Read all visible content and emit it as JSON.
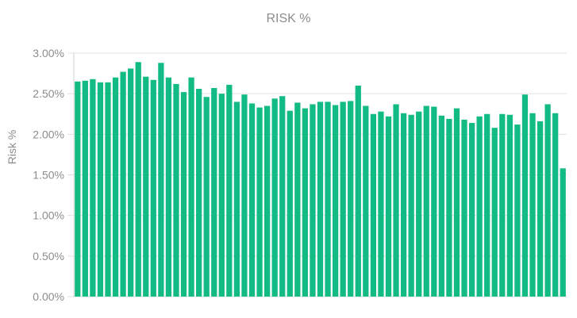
{
  "chart_data": {
    "type": "bar",
    "title": "RISK %",
    "xlabel": "",
    "ylabel": "Risk %",
    "ylim": [
      0,
      3.0
    ],
    "y_ticks": [
      "0.00%",
      "0.50%",
      "1.00%",
      "1.50%",
      "2.00%",
      "2.50%",
      "3.00%"
    ],
    "grid": true,
    "legend": "none",
    "bar_color": "#13bb84",
    "values": [
      2.65,
      2.66,
      2.68,
      2.64,
      2.64,
      2.7,
      2.77,
      2.81,
      2.89,
      2.71,
      2.67,
      2.88,
      2.7,
      2.62,
      2.52,
      2.7,
      2.56,
      2.46,
      2.57,
      2.5,
      2.61,
      2.4,
      2.49,
      2.38,
      2.33,
      2.35,
      2.44,
      2.47,
      2.29,
      2.39,
      2.32,
      2.37,
      2.4,
      2.4,
      2.36,
      2.4,
      2.41,
      2.6,
      2.35,
      2.25,
      2.28,
      2.22,
      2.37,
      2.26,
      2.24,
      2.28,
      2.35,
      2.34,
      2.23,
      2.19,
      2.32,
      2.18,
      2.14,
      2.22,
      2.25,
      2.08,
      2.25,
      2.24,
      2.12,
      2.49,
      2.26,
      2.16,
      2.37,
      2.26,
      1.58
    ]
  }
}
